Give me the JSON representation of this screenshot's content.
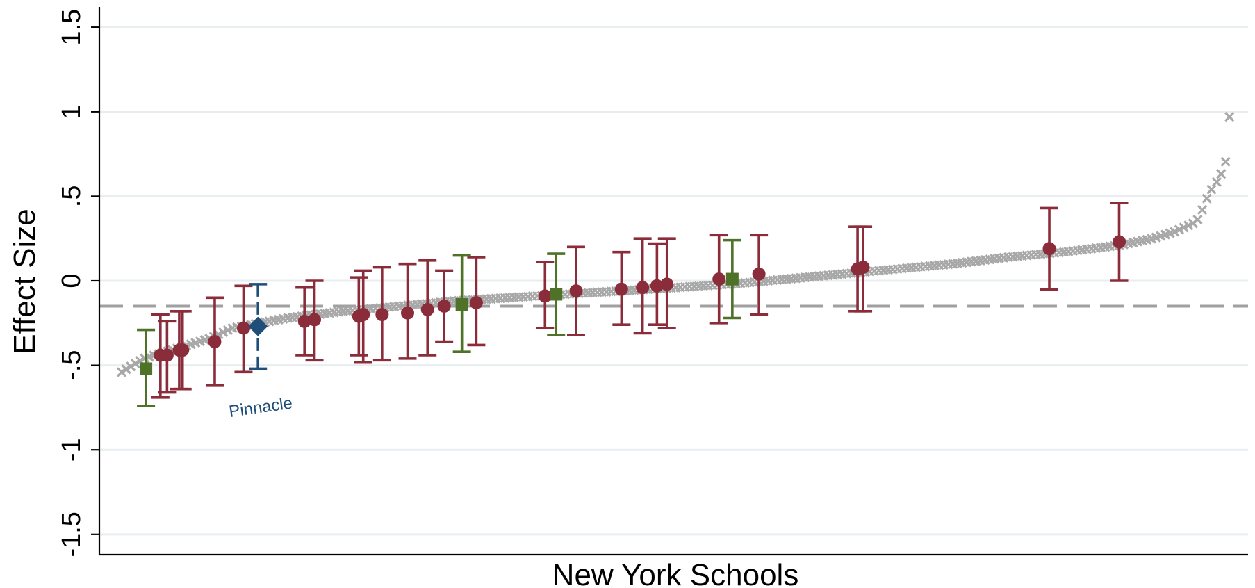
{
  "chart_data": {
    "type": "scatter",
    "title": "",
    "xlabel": "New York Schools",
    "ylabel": "Effect Size",
    "ylim": [
      -1.62,
      1.62
    ],
    "yticks": [
      -1.5,
      -1,
      -0.5,
      0,
      0.5,
      1,
      1.5
    ],
    "ytick_labels": [
      "-1.5",
      "-1",
      "-.5",
      "0",
      ".5",
      "1",
      "1.5"
    ],
    "grid": true,
    "reference_line": {
      "y": -0.15,
      "style": "dashed",
      "color": "#a0a0a0"
    },
    "colors": {
      "background_points": "#a8a8a8",
      "red": "#8b2c3a",
      "green": "#4e7228",
      "blue": "#1f4e79",
      "grid": "#e8eef0",
      "axis": "#000000"
    },
    "background_curve": {
      "x": [
        0,
        0.02,
        0.05,
        0.08,
        0.1,
        0.15,
        0.2,
        0.25,
        0.3,
        0.35,
        0.4,
        0.45,
        0.5,
        0.55,
        0.6,
        0.65,
        0.7,
        0.75,
        0.8,
        0.85,
        0.9,
        0.93,
        0.95,
        0.96,
        0.97,
        0.975,
        0.98,
        0.985,
        0.99,
        0.995,
        1.0
      ],
      "y": [
        -0.54,
        -0.46,
        -0.4,
        -0.34,
        -0.28,
        -0.22,
        -0.18,
        -0.15,
        -0.12,
        -0.1,
        -0.08,
        -0.06,
        -0.04,
        -0.02,
        0.01,
        0.04,
        0.07,
        0.1,
        0.14,
        0.17,
        0.21,
        0.25,
        0.29,
        0.32,
        0.35,
        0.42,
        0.5,
        0.56,
        0.6,
        0.68,
        0.8
      ],
      "extra_points": [
        [
          0.9995,
          0.97
        ]
      ]
    },
    "series": [
      {
        "marker": "circle",
        "color": "red",
        "x": [
          0.035,
          0.041,
          0.052,
          0.055,
          0.084,
          0.11,
          0.165,
          0.174,
          0.214,
          0.218,
          0.235,
          0.258,
          0.276,
          0.291,
          0.32,
          0.382,
          0.41,
          0.451,
          0.47,
          0.483,
          0.492,
          0.539,
          0.575,
          0.664,
          0.669,
          0.837,
          0.9
        ],
        "y": [
          -0.44,
          -0.44,
          -0.41,
          -0.41,
          -0.36,
          -0.28,
          -0.24,
          -0.23,
          -0.21,
          -0.2,
          -0.2,
          -0.19,
          -0.17,
          -0.15,
          -0.13,
          -0.09,
          -0.06,
          -0.05,
          -0.04,
          -0.03,
          -0.02,
          0.01,
          0.04,
          0.07,
          0.08,
          0.19,
          0.23
        ],
        "lower": [
          -0.69,
          -0.66,
          -0.64,
          -0.64,
          -0.62,
          -0.54,
          -0.44,
          -0.47,
          -0.44,
          -0.48,
          -0.47,
          -0.46,
          -0.44,
          -0.36,
          -0.38,
          -0.28,
          -0.32,
          -0.26,
          -0.31,
          -0.26,
          -0.28,
          -0.25,
          -0.2,
          -0.18,
          -0.18,
          -0.05,
          0.0
        ],
        "upper": [
          -0.2,
          -0.24,
          -0.18,
          -0.18,
          -0.1,
          -0.03,
          -0.04,
          0.0,
          0.02,
          0.06,
          0.08,
          0.1,
          0.12,
          0.06,
          0.14,
          0.11,
          0.2,
          0.17,
          0.25,
          0.22,
          0.25,
          0.27,
          0.27,
          0.32,
          0.32,
          0.43,
          0.46
        ]
      },
      {
        "marker": "square",
        "color": "green",
        "x": [
          0.022,
          0.307,
          0.392,
          0.551
        ],
        "y": [
          -0.52,
          -0.14,
          -0.08,
          0.01
        ],
        "lower": [
          -0.74,
          -0.42,
          -0.32,
          -0.22
        ],
        "upper": [
          -0.29,
          0.15,
          0.16,
          0.24
        ]
      },
      {
        "marker": "diamond",
        "color": "blue",
        "x": [
          0.123
        ],
        "y": [
          -0.27
        ],
        "lower": [
          -0.52
        ],
        "upper": [
          -0.02
        ]
      }
    ],
    "annotations": [
      {
        "text": "Pinnacle",
        "x": 0.123,
        "y": -0.78,
        "color": "blue"
      }
    ]
  }
}
